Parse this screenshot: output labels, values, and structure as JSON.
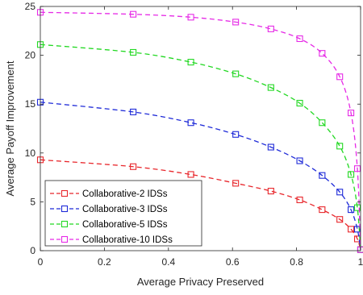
{
  "chart_data": {
    "type": "line",
    "title": "",
    "xlabel": "Average Privacy Preserved",
    "ylabel": "Average Payoff Improvement",
    "xlim": [
      0,
      1
    ],
    "ylim": [
      0,
      25
    ],
    "xticks": [
      0,
      0.2,
      0.4,
      0.6,
      0.8,
      1
    ],
    "xtick_labels": [
      "0",
      "0.2",
      "0.4",
      "0.6",
      "0.8",
      "1"
    ],
    "yticks": [
      0,
      5,
      10,
      15,
      20,
      25
    ],
    "ytick_labels": [
      "0",
      "5",
      "10",
      "15",
      "20",
      "25"
    ],
    "grid": false,
    "legend_position": "bottom-left",
    "series": [
      {
        "name": "Collaborative-2 IDSs",
        "color": "#e8262b",
        "x": [
          0.0,
          0.29,
          0.47,
          0.61,
          0.72,
          0.81,
          0.88,
          0.935,
          0.97,
          0.99,
          1.0
        ],
        "y": [
          9.3,
          8.6,
          7.8,
          6.9,
          6.1,
          5.2,
          4.2,
          3.2,
          2.2,
          1.2,
          0.1
        ]
      },
      {
        "name": "Collaborative-3 IDSs",
        "color": "#1f2bd8",
        "x": [
          0.0,
          0.29,
          0.47,
          0.61,
          0.72,
          0.81,
          0.88,
          0.935,
          0.97,
          0.99,
          1.0
        ],
        "y": [
          15.2,
          14.2,
          13.1,
          11.9,
          10.6,
          9.2,
          7.7,
          6.0,
          4.2,
          2.2,
          0.1
        ]
      },
      {
        "name": "Collaborative-5 IDSs",
        "color": "#22d822",
        "x": [
          0.0,
          0.29,
          0.47,
          0.61,
          0.72,
          0.81,
          0.88,
          0.935,
          0.97,
          0.99,
          1.0
        ],
        "y": [
          21.1,
          20.3,
          19.3,
          18.1,
          16.7,
          15.1,
          13.1,
          10.7,
          7.8,
          4.4,
          0.1
        ]
      },
      {
        "name": "Collaborative-10 IDSs",
        "color": "#e62ae6",
        "x": [
          0.0,
          0.29,
          0.47,
          0.61,
          0.72,
          0.81,
          0.88,
          0.935,
          0.97,
          0.99,
          1.0
        ],
        "y": [
          24.4,
          24.2,
          23.9,
          23.4,
          22.7,
          21.7,
          20.2,
          17.8,
          14.1,
          8.4,
          0.1
        ]
      }
    ]
  }
}
